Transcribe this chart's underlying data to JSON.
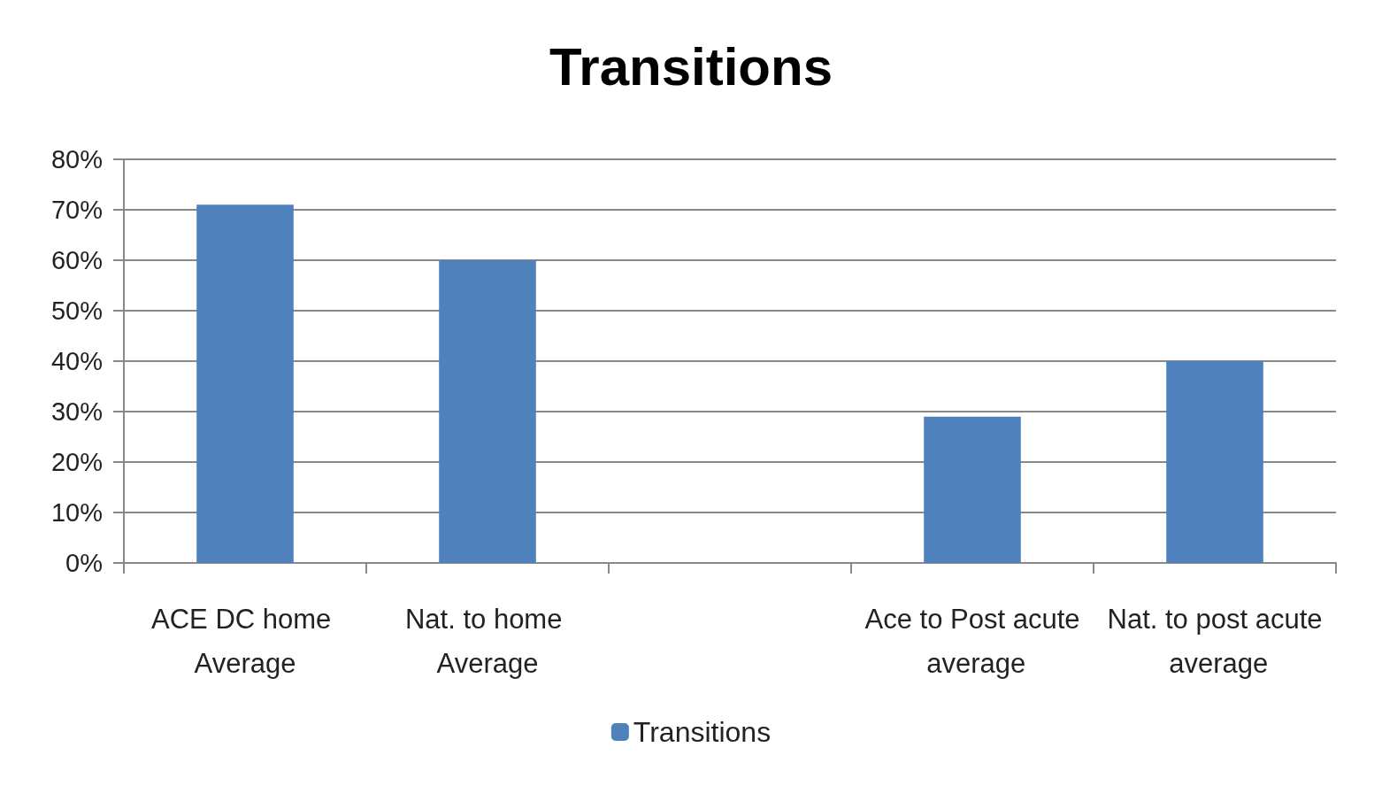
{
  "chart_data": {
    "type": "bar",
    "title": "Transitions",
    "categories": [
      "ACE DC home Average",
      "Nat. to home Average",
      null,
      "Ace to Post acute average",
      "Nat. to post acute average"
    ],
    "series": [
      {
        "name": "Transitions",
        "color": "#4f81bd",
        "values": [
          71,
          60,
          null,
          29,
          40
        ]
      }
    ],
    "ylim": [
      0,
      80
    ],
    "yticks": [
      {
        "value": 0,
        "label": "0%"
      },
      {
        "value": 10,
        "label": "10%"
      },
      {
        "value": 20,
        "label": "20%"
      },
      {
        "value": 30,
        "label": "30%"
      },
      {
        "value": 40,
        "label": "40%"
      },
      {
        "value": 50,
        "label": "50%"
      },
      {
        "value": 60,
        "label": "60%"
      },
      {
        "value": 70,
        "label": "70%"
      },
      {
        "value": 80,
        "label": "80%"
      }
    ],
    "grid": "y",
    "legend": "bottom"
  }
}
